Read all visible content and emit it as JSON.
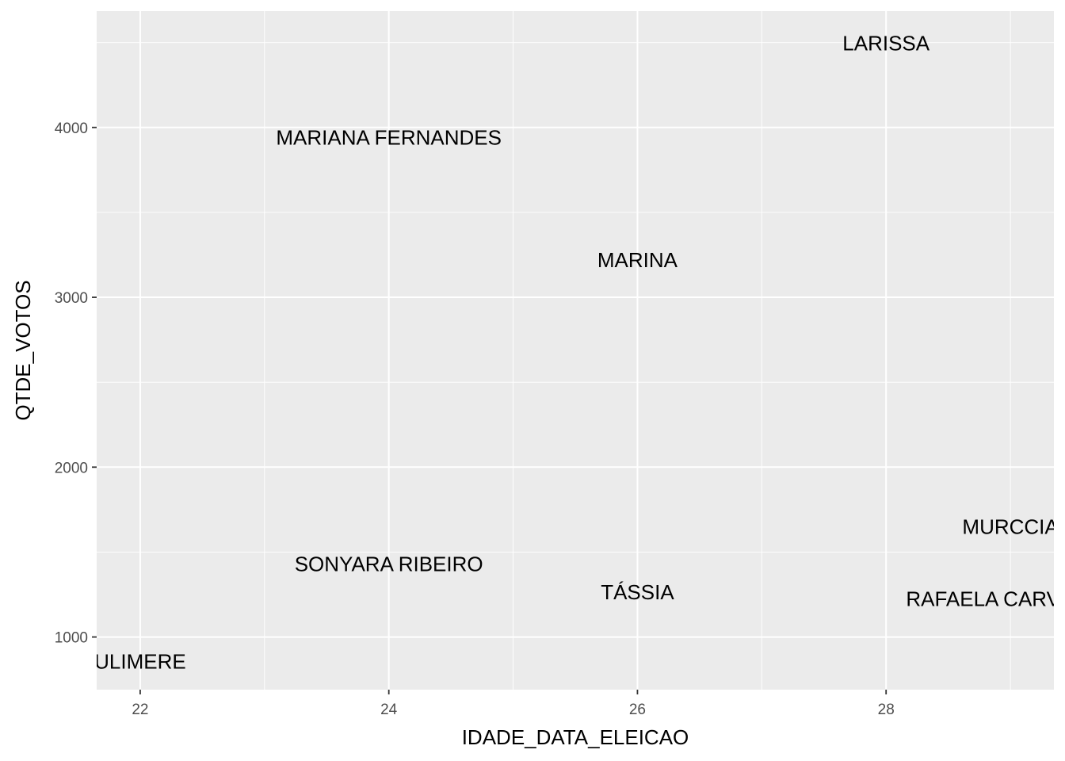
{
  "chart_data": {
    "type": "scatter",
    "xlabel": "IDADE_DATA_ELEICAO",
    "ylabel": "QTDE_VOTOS",
    "xlim": [
      21.65,
      29.35
    ],
    "ylim": [
      690,
      4685
    ],
    "x_ticks": [
      22,
      24,
      26,
      28
    ],
    "y_ticks": [
      1000,
      2000,
      3000,
      4000
    ],
    "x_tick_labels": [
      "22",
      "24",
      "26",
      "28"
    ],
    "y_tick_labels": [
      "1000",
      "2000",
      "3000",
      "4000"
    ],
    "grid": true,
    "legend": "none",
    "colors": {
      "panel_bg": "#ebebeb",
      "grid_major": "#ffffff",
      "text": "#000000",
      "tick_text": "#4d4d4d",
      "tick_mark": "#333333"
    },
    "points": [
      {
        "label": "LARISSA",
        "x": 28,
        "y": 4495
      },
      {
        "label": "MARIANA FERNANDES",
        "x": 24,
        "y": 3940
      },
      {
        "label": "MARINA",
        "x": 26,
        "y": 3220
      },
      {
        "label": "MURCCIA",
        "x": 29,
        "y": 1650
      },
      {
        "label": "SONYARA RIBEIRO",
        "x": 24,
        "y": 1430
      },
      {
        "label": "TÁSSIA",
        "x": 26,
        "y": 1265
      },
      {
        "label": "RAFAELA CARVALHO",
        "x": 29,
        "y": 1225
      },
      {
        "label": "ULIMERE",
        "x": 22,
        "y": 855
      }
    ]
  }
}
